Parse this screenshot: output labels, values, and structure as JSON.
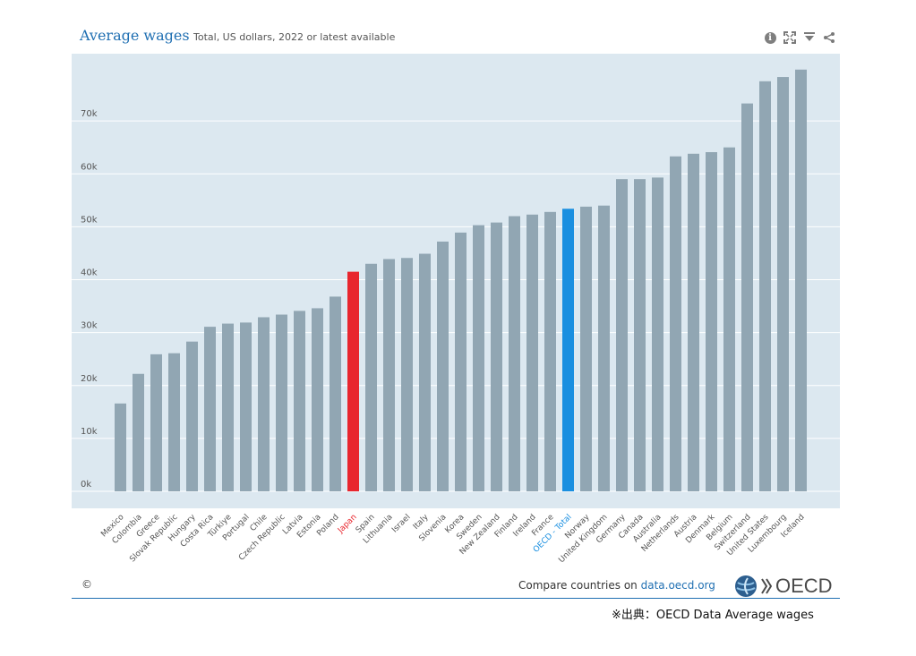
{
  "header": {
    "title": "Average wages",
    "subtitle": "Total, US dollars, 2022 or latest available"
  },
  "toolbar": {
    "info_glyph": "i",
    "info_icon": "info-icon",
    "expand_icon": "expand-icon",
    "download_icon": "download-icon",
    "share_icon": "share-icon"
  },
  "footer": {
    "copyright": "©",
    "compare_prefix": "Compare countries on",
    "compare_link": "data.oecd.org",
    "logo_text": "OECD"
  },
  "source_note": "※出典：OECD Data Average wages",
  "colors": {
    "background": "#dce8f0",
    "bar": "#91a6b3",
    "highlight_japan": "#e8262e",
    "highlight_oecd": "#1a8fe0",
    "oecd_label": "#1a8fe0",
    "japan_label": "#e8262e"
  },
  "chart_data": {
    "type": "bar",
    "ylim": [
      0,
      80000
    ],
    "yticks": [
      "0k",
      "10k",
      "20k",
      "30k",
      "40k",
      "50k",
      "60k",
      "70k"
    ],
    "grid": true,
    "categories": [
      "Mexico",
      "Colombia",
      "Greece",
      "Slovak Republic",
      "Hungary",
      "Costa Rica",
      "Türkiye",
      "Portugal",
      "Chile",
      "Czech Republic",
      "Latvia",
      "Estonia",
      "Poland",
      "Japan",
      "Spain",
      "Lithuania",
      "Israel",
      "Italy",
      "Slovenia",
      "Korea",
      "Sweden",
      "New Zealand",
      "Finland",
      "Ireland",
      "France",
      "OECD - Total",
      "Norway",
      "United Kingdom",
      "Germany",
      "Canada",
      "Australia",
      "Netherlands",
      "Austria",
      "Denmark",
      "Belgium",
      "Switzerland",
      "United States",
      "Luxembourg",
      "Iceland"
    ],
    "values": [
      16600,
      22200,
      25900,
      26100,
      28300,
      31100,
      31700,
      31900,
      32900,
      33400,
      34100,
      34600,
      36800,
      41500,
      43000,
      43900,
      44100,
      44900,
      47200,
      48900,
      50300,
      50800,
      52000,
      52300,
      52800,
      53400,
      53800,
      54000,
      59000,
      59000,
      59300,
      63300,
      63800,
      64100,
      65000,
      73300,
      77500,
      78300,
      79700
    ],
    "highlight": {
      "Japan": "#e8262e",
      "OECD - Total": "#1a8fe0"
    }
  }
}
